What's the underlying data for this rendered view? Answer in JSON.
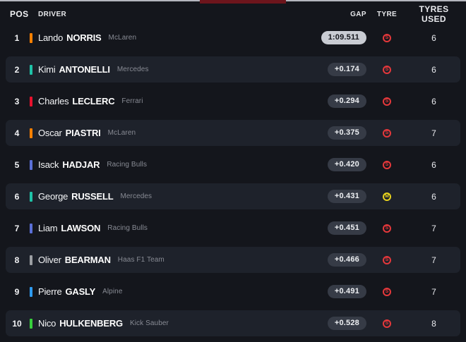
{
  "top_bar": {
    "accent_color": "#6d151c",
    "strip_color": "#b4b6bd"
  },
  "colors": {
    "page_bg": "#14161c",
    "card_bg": "#1e222b",
    "pill_bg": "#363b46",
    "leader_pill_bg": "#c9ccd3",
    "soft_tyre": "#e5383b",
    "medium_tyre": "#e8d21d"
  },
  "table": {
    "headers": {
      "pos": "POS",
      "driver": "DRIVER",
      "gap": "GAP",
      "tyre": "TYRE",
      "tyres_used": "TYRES USED"
    },
    "rows": [
      {
        "pos": "1",
        "first": "Lando",
        "last": "NORRIS",
        "team": "McLaren",
        "team_color": "#ff8000",
        "gap": "1:09.511",
        "leader": true,
        "tyre": "S",
        "tyre_color": "#e5383b",
        "tyres_used": "6",
        "card": false
      },
      {
        "pos": "2",
        "first": "Kimi",
        "last": "ANTONELLI",
        "team": "Mercedes",
        "team_color": "#1fc2a7",
        "gap": "+0.174",
        "leader": false,
        "tyre": "S",
        "tyre_color": "#e5383b",
        "tyres_used": "6",
        "card": true
      },
      {
        "pos": "3",
        "first": "Charles",
        "last": "LECLERC",
        "team": "Ferrari",
        "team_color": "#e8112d",
        "gap": "+0.294",
        "leader": false,
        "tyre": "S",
        "tyre_color": "#e5383b",
        "tyres_used": "6",
        "card": false
      },
      {
        "pos": "4",
        "first": "Oscar",
        "last": "PIASTRI",
        "team": "McLaren",
        "team_color": "#ff8000",
        "gap": "+0.375",
        "leader": false,
        "tyre": "S",
        "tyre_color": "#e5383b",
        "tyres_used": "7",
        "card": true
      },
      {
        "pos": "5",
        "first": "Isack",
        "last": "HADJAR",
        "team": "Racing Bulls",
        "team_color": "#5a6fd6",
        "gap": "+0.420",
        "leader": false,
        "tyre": "S",
        "tyre_color": "#e5383b",
        "tyres_used": "6",
        "card": false
      },
      {
        "pos": "6",
        "first": "George",
        "last": "RUSSELL",
        "team": "Mercedes",
        "team_color": "#1fc2a7",
        "gap": "+0.431",
        "leader": false,
        "tyre": "M",
        "tyre_color": "#e8d21d",
        "tyres_used": "6",
        "card": true
      },
      {
        "pos": "7",
        "first": "Liam",
        "last": "LAWSON",
        "team": "Racing Bulls",
        "team_color": "#5a6fd6",
        "gap": "+0.451",
        "leader": false,
        "tyre": "S",
        "tyre_color": "#e5383b",
        "tyres_used": "7",
        "card": false
      },
      {
        "pos": "8",
        "first": "Oliver",
        "last": "BEARMAN",
        "team": "Haas F1 Team",
        "team_color": "#9c9fa3",
        "gap": "+0.466",
        "leader": false,
        "tyre": "S",
        "tyre_color": "#e5383b",
        "tyres_used": "7",
        "card": true
      },
      {
        "pos": "9",
        "first": "Pierre",
        "last": "GASLY",
        "team": "Alpine",
        "team_color": "#2f9bf0",
        "gap": "+0.491",
        "leader": false,
        "tyre": "S",
        "tyre_color": "#e5383b",
        "tyres_used": "7",
        "card": false
      },
      {
        "pos": "10",
        "first": "Nico",
        "last": "HULKENBERG",
        "team": "Kick Sauber",
        "team_color": "#37d03c",
        "gap": "+0.528",
        "leader": false,
        "tyre": "S",
        "tyre_color": "#e5383b",
        "tyres_used": "8",
        "card": true
      }
    ]
  }
}
